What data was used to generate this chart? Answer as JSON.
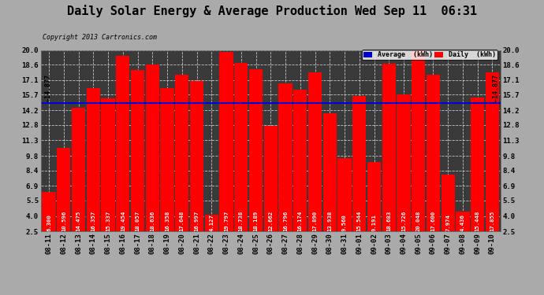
{
  "title": "Daily Solar Energy & Average Production Wed Sep 11  06:31",
  "copyright": "Copyright 2013 Cartronics.com",
  "categories": [
    "08-11",
    "08-12",
    "08-13",
    "08-14",
    "08-15",
    "08-16",
    "08-17",
    "08-18",
    "08-19",
    "08-20",
    "08-21",
    "08-22",
    "08-23",
    "08-24",
    "08-25",
    "08-26",
    "08-27",
    "08-28",
    "08-29",
    "08-30",
    "08-31",
    "09-01",
    "09-02",
    "09-03",
    "09-04",
    "09-05",
    "09-06",
    "09-07",
    "09-08",
    "09-09",
    "09-10"
  ],
  "values": [
    6.3,
    10.596,
    14.475,
    16.357,
    15.337,
    19.454,
    18.057,
    18.636,
    16.358,
    17.648,
    16.997,
    4.127,
    19.797,
    18.738,
    18.189,
    12.662,
    16.796,
    16.174,
    17.89,
    13.938,
    9.56,
    15.544,
    9.191,
    18.683,
    15.726,
    20.048,
    17.6,
    7.974,
    4.436,
    15.448,
    17.855
  ],
  "average": 14.877,
  "bar_color": "#ff0000",
  "avg_line_color": "#0000dd",
  "fig_bg_color": "#aaaaaa",
  "plot_bg_color": "#3a3a3a",
  "ylim_min": 2.5,
  "ylim_max": 20.0,
  "yticks": [
    2.5,
    4.0,
    5.5,
    6.9,
    8.4,
    9.8,
    11.3,
    12.8,
    14.2,
    15.7,
    17.1,
    18.6,
    20.0
  ],
  "legend_avg_color": "#0000cc",
  "legend_daily_color": "#ff0000",
  "legend_avg_text": "Average  (kWh)",
  "legend_daily_text": "Daily  (kWh)",
  "avg_label": "14.877",
  "title_fontsize": 11,
  "tick_fontsize": 6.5,
  "label_fontsize": 5.2,
  "bar_width": 0.92
}
